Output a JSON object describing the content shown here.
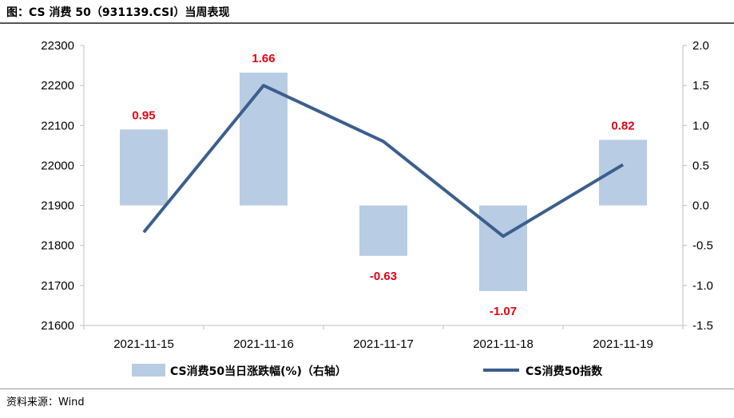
{
  "title": "图：CS 消费 50（931139.CSI）当周表现",
  "source": "资料来源：Wind",
  "colors": {
    "bar": "#b8cce4",
    "line": "#3b5f8d",
    "label": "#e60012",
    "axis": "#bfbfbf"
  },
  "chart_data": {
    "type": "bar",
    "title": "图：CS 消费 50（931139.CSI）当周表现",
    "categories": [
      "2021-11-15",
      "2021-11-16",
      "2021-11-17",
      "2021-11-18",
      "2021-11-19"
    ],
    "series": [
      {
        "name": "CS消费50当日涨跌幅(%)（右轴）",
        "type": "bar",
        "axis": "right",
        "values": [
          0.95,
          1.66,
          -0.63,
          -1.07,
          0.82
        ],
        "labels": [
          "0.95",
          "1.66",
          "-0.63",
          "-1.07",
          "0.82"
        ]
      },
      {
        "name": "CS消费50指数",
        "type": "line",
        "axis": "left",
        "values": [
          21833,
          22200,
          22060,
          21823,
          22002
        ]
      }
    ],
    "y_left": {
      "lim": [
        21600,
        22300
      ],
      "ticks": [
        "21600",
        "21700",
        "21800",
        "21900",
        "22000",
        "22100",
        "22200",
        "22300"
      ]
    },
    "y_right": {
      "lim": [
        -1.5,
        2.0
      ],
      "ticks": [
        "-1.5",
        "-1.0",
        "-0.5",
        "0.0",
        "0.5",
        "1.0",
        "1.5",
        "2.0"
      ]
    },
    "legend": "bottom",
    "grid": false
  }
}
